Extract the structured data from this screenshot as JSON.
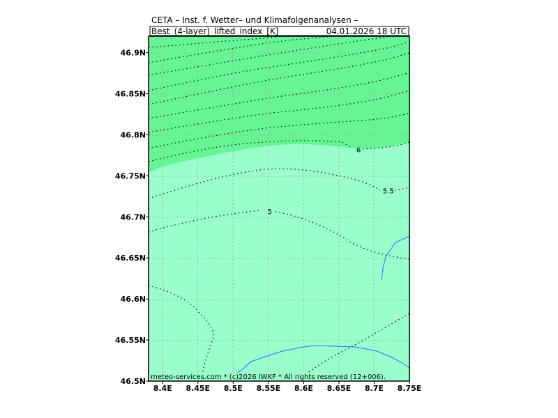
{
  "header": {
    "title": "CETA – Inst. f. Wetter– und Klimafolgenanalysen –",
    "field": "Best_(4-layer)_lifted_index_[K]",
    "valid_time": "04.01.2026  18 UTC"
  },
  "footer": {
    "credit": "meteo-services.com * (c)2026 IWKF * All rights reserved (12+006)."
  },
  "colors": {
    "band_high": "#66f595",
    "band_low": "#99ffcc",
    "grid": "#aaaaaa",
    "river": "#3366ff",
    "contour": "#000000"
  },
  "chart_data": {
    "type": "map",
    "x_ticks": [
      "8.4E",
      "8.45E",
      "8.5E",
      "8.55E",
      "8.6E",
      "8.65E",
      "8.7E",
      "8.75E"
    ],
    "y_ticks": [
      "46.9N",
      "46.85N",
      "46.8N",
      "46.75N",
      "46.7N",
      "46.65N",
      "46.6N",
      "46.55N",
      "46.5N"
    ],
    "xlim": [
      8.38,
      8.75
    ],
    "ylim": [
      46.5,
      46.92
    ],
    "grid": true,
    "contour_labels": [
      {
        "text": "6",
        "lon": 8.678,
        "lat": 46.782
      },
      {
        "text": "5.5",
        "lon": 8.72,
        "lat": 46.732
      },
      {
        "text": "5",
        "lon": 8.552,
        "lat": 46.707
      }
    ]
  }
}
